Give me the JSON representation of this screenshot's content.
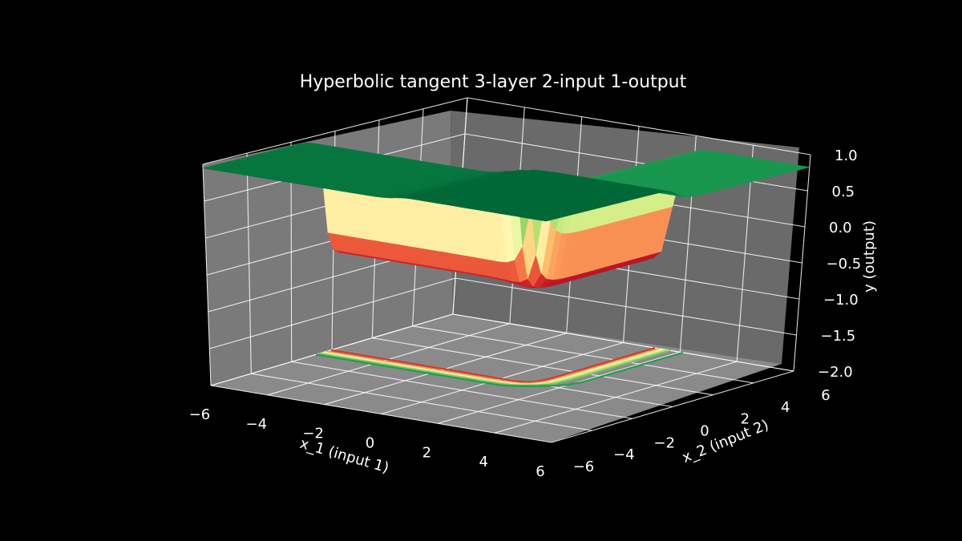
{
  "chart_data": {
    "type": "surface3d",
    "title": "Hyperbolic tangent 3-layer 2-input 1-output",
    "xlabel": "x_1 (input 1)",
    "ylabel": "x_2 (input 2)",
    "zlabel": "y (output)",
    "xlim": [
      -6,
      6
    ],
    "ylim": [
      -6,
      6
    ],
    "zlim": [
      -2.0,
      1.0
    ],
    "x_ticks": [
      "−6",
      "−4",
      "−2",
      "0",
      "2",
      "4",
      "6"
    ],
    "y_ticks": [
      "−6",
      "−4",
      "−2",
      "0",
      "2",
      "4",
      "6"
    ],
    "z_ticks": [
      "1.0",
      "0.5",
      "0.0",
      "−0.5",
      "−1.0",
      "−1.5",
      "−2.0"
    ],
    "colormap": "RdYlGn",
    "surface_range": [
      -0.8,
      1.0
    ],
    "contour_offset_z": -2.0,
    "background": "#000000",
    "pane_color": "#7a7a7a",
    "grid": true
  }
}
